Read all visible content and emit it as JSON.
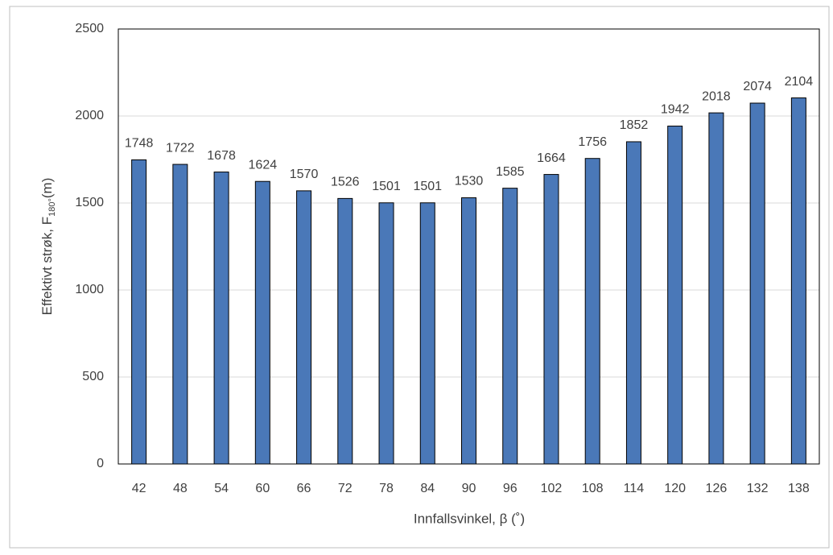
{
  "chart_data": {
    "type": "bar",
    "xlabel": "Innfallsvinkel, β (˚)",
    "ylabel": "Effektivt strøk, F",
    "ylabel_sub": "180°",
    "ylabel_end": "(m)",
    "categories": [
      "42",
      "48",
      "54",
      "60",
      "66",
      "72",
      "78",
      "84",
      "90",
      "96",
      "102",
      "108",
      "114",
      "120",
      "126",
      "132",
      "138"
    ],
    "values": [
      1748,
      1722,
      1678,
      1624,
      1570,
      1526,
      1501,
      1501,
      1530,
      1585,
      1664,
      1756,
      1852,
      1942,
      2018,
      2074,
      2104
    ],
    "color": "#4a78b8",
    "ylim": [
      0,
      2500
    ],
    "yticks": [
      0,
      500,
      1000,
      1500,
      2000,
      2500
    ],
    "grid": true,
    "data_labels": true
  }
}
